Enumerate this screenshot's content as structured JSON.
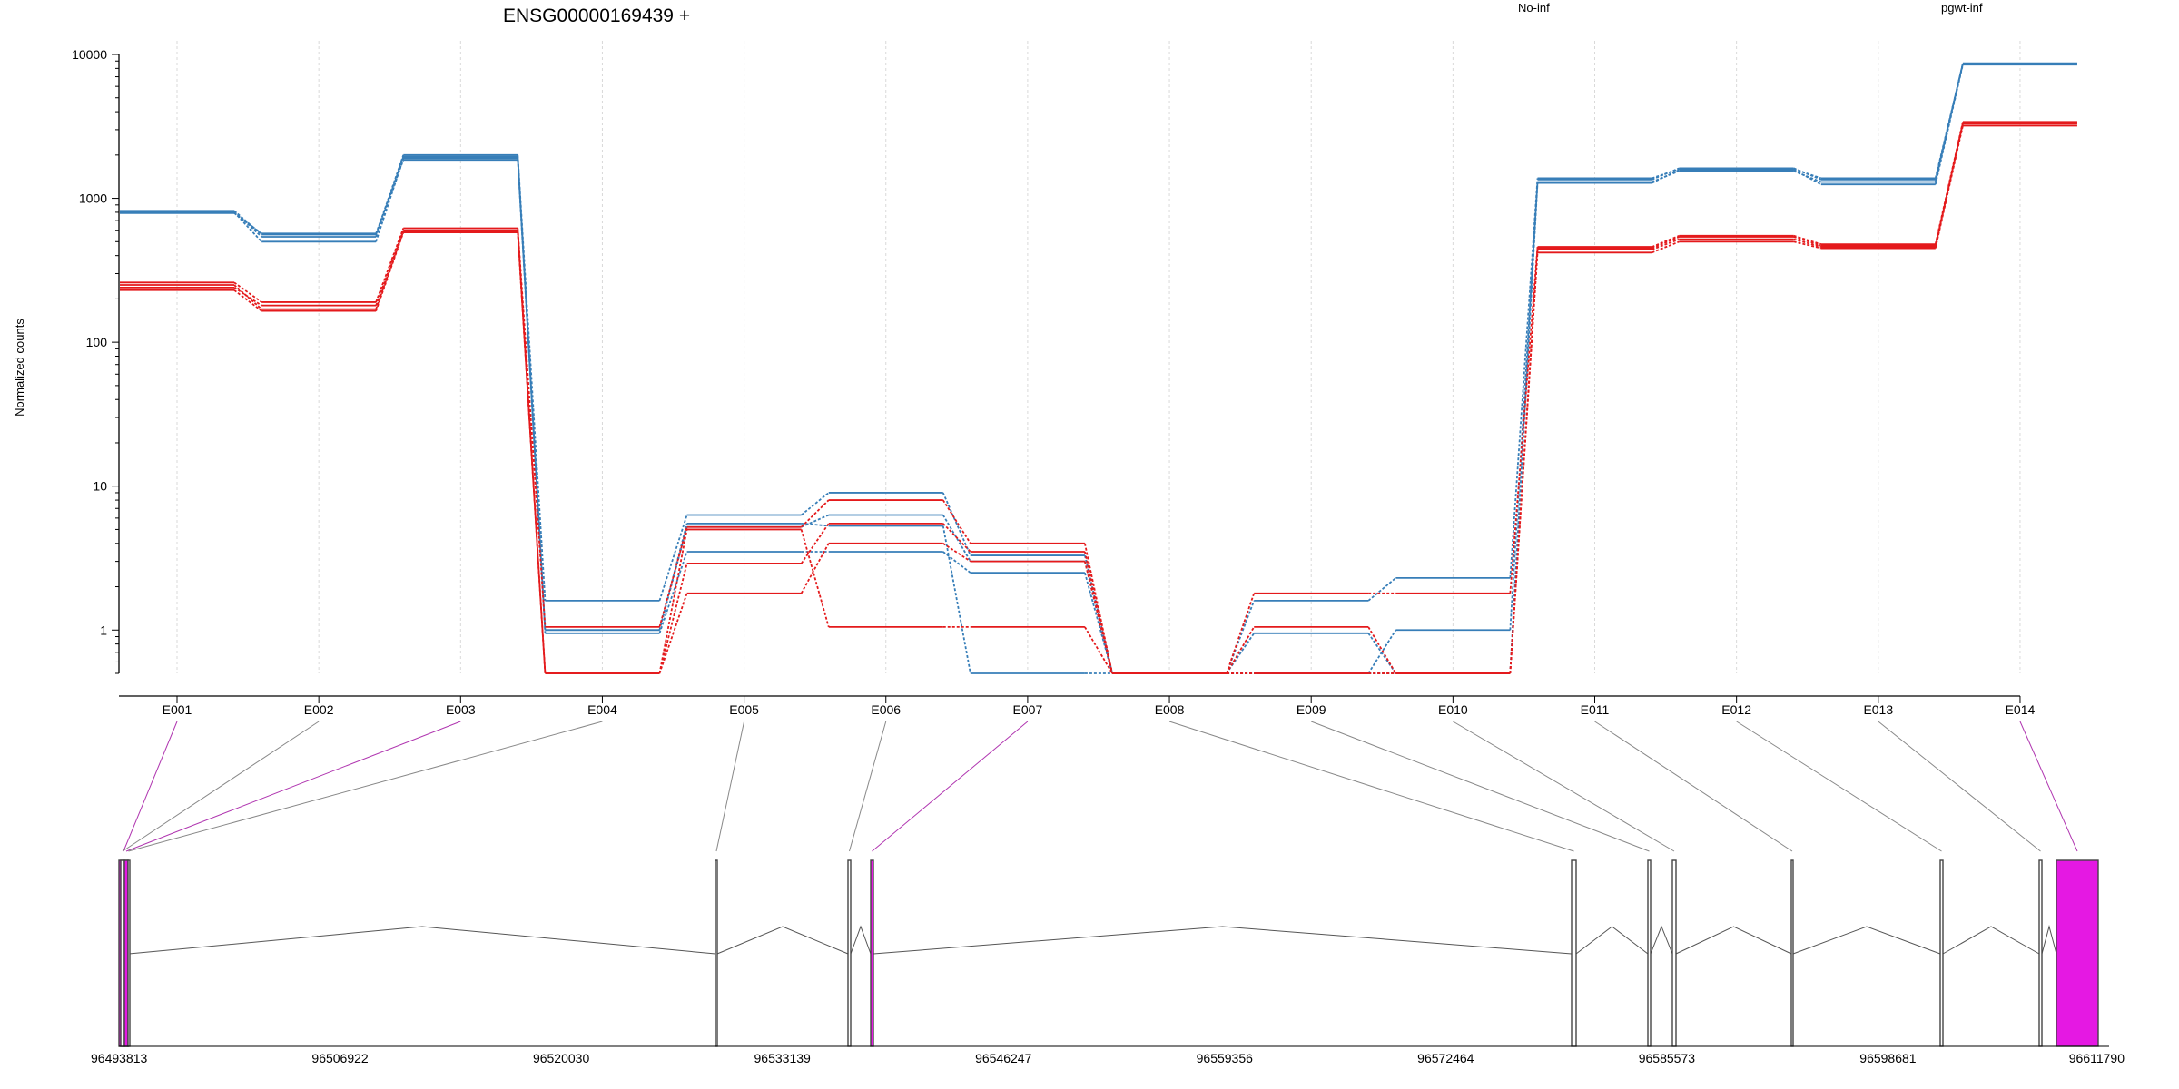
{
  "chart_data": {
    "type": "line",
    "title": "ENSG00000169439 +",
    "ylabel": "Normalized counts",
    "xlabel": "",
    "yscale": "log",
    "ylim": [
      0.5,
      10000
    ],
    "yticks": [
      "1",
      "10",
      "100",
      "1000",
      "10000"
    ],
    "grid": "vertical dotted",
    "legend": [
      {
        "name": "No-inf",
        "color": "#E41A1C"
      },
      {
        "name": "pgwt-inf",
        "color": "#377EB8"
      }
    ],
    "categories": [
      "E001",
      "E002",
      "E003",
      "E004",
      "E005",
      "E006",
      "E007",
      "E008",
      "E009",
      "E010",
      "E011",
      "E012",
      "E013",
      "E014"
    ],
    "series": [
      {
        "group": "pgwt-inf",
        "color": "#377EB8",
        "values": [
          820,
          560,
          2000,
          1.6,
          6.3,
          9.0,
          3.3,
          0.5,
          1.6,
          2.3,
          1380,
          1600,
          1380,
          8600
        ]
      },
      {
        "group": "pgwt-inf",
        "color": "#377EB8",
        "values": [
          800,
          500,
          1900,
          1.0,
          5.2,
          6.3,
          3.0,
          0.5,
          0.5,
          1.0,
          1300,
          1550,
          1300,
          8700
        ]
      },
      {
        "group": "pgwt-inf",
        "color": "#377EB8",
        "values": [
          790,
          570,
          1850,
          0.95,
          3.5,
          3.5,
          2.5,
          0.5,
          0.95,
          0.5,
          1280,
          1580,
          1250,
          8500
        ]
      },
      {
        "group": "pgwt-inf",
        "color": "#377EB8",
        "values": [
          810,
          540,
          1950,
          1.0,
          5.5,
          5.3,
          0.5,
          0.5,
          0.5,
          0.5,
          1350,
          1620,
          1350,
          8650
        ]
      },
      {
        "group": "No-inf",
        "color": "#E41A1C",
        "values": [
          260,
          190,
          620,
          1.05,
          5.2,
          8.0,
          4.0,
          0.5,
          1.8,
          1.8,
          460,
          550,
          480,
          3400
        ]
      },
      {
        "group": "No-inf",
        "color": "#E41A1C",
        "values": [
          240,
          180,
          600,
          0.5,
          2.9,
          5.5,
          3.5,
          0.5,
          1.05,
          0.5,
          450,
          540,
          470,
          3300
        ]
      },
      {
        "group": "No-inf",
        "color": "#E41A1C",
        "values": [
          250,
          170,
          590,
          0.5,
          1.8,
          4.0,
          3.0,
          0.5,
          0.5,
          0.5,
          420,
          500,
          450,
          3200
        ]
      },
      {
        "group": "No-inf",
        "color": "#E41A1C",
        "values": [
          230,
          165,
          580,
          0.5,
          5.0,
          1.05,
          1.05,
          0.5,
          0.5,
          0.5,
          440,
          520,
          460,
          3350
        ]
      }
    ],
    "gene_model": {
      "coordinate_labels": [
        "96493813",
        "96506922",
        "96520030",
        "96533139",
        "96546247",
        "96559356",
        "96572464",
        "96585573",
        "96598681",
        "96611790"
      ],
      "exons": [
        {
          "label": "E001",
          "color": "#E518E3"
        },
        {
          "label": "E002",
          "color": "#ffffff"
        },
        {
          "label": "E003",
          "color": "#E518E3"
        },
        {
          "label": "E004",
          "color": "#ffffff"
        },
        {
          "label": "E005",
          "color": "#ffffff"
        },
        {
          "label": "E006",
          "color": "#ffffff"
        },
        {
          "label": "E007",
          "color": "#E518E3"
        },
        {
          "label": "E008",
          "color": "#ffffff"
        },
        {
          "label": "E009",
          "color": "#ffffff"
        },
        {
          "label": "E010",
          "color": "#ffffff"
        },
        {
          "label": "E011",
          "color": "#ffffff"
        },
        {
          "label": "E012",
          "color": "#ffffff"
        },
        {
          "label": "E013",
          "color": "#ffffff"
        },
        {
          "label": "E014",
          "color": "#E518E3"
        }
      ]
    }
  }
}
